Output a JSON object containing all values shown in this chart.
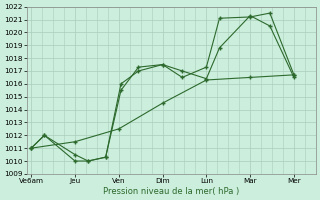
{
  "title": "Pression niveau de la mer( hPa )",
  "bg_color": "#cceedd",
  "grid_color": "#aaccbb",
  "line_color": "#2d6a2d",
  "ylim": [
    1009,
    1022
  ],
  "yticks": [
    1009,
    1010,
    1011,
    1012,
    1013,
    1014,
    1015,
    1016,
    1017,
    1018,
    1019,
    1020,
    1021,
    1022
  ],
  "x_labels": [
    "Ve6am",
    "Jeu",
    "Ven",
    "Dim",
    "Lun",
    "Mar",
    "Mer"
  ],
  "x_positions": [
    0,
    1,
    2,
    3,
    4,
    5,
    6
  ],
  "xlim": [
    -0.1,
    6.5
  ],
  "series1_x": [
    0.0,
    0.3,
    1.0,
    1.3,
    1.7,
    2.05,
    2.45,
    3.0,
    3.45,
    4.0,
    4.3,
    5.0,
    5.45,
    6.0
  ],
  "series1_y": [
    1011,
    1012,
    1010.5,
    1010,
    1010.3,
    1016,
    1017,
    1017.5,
    1016.5,
    1017.3,
    1021.1,
    1021.2,
    1021.5,
    1016.7
  ],
  "series2_x": [
    0.0,
    0.3,
    1.0,
    1.3,
    1.7,
    2.05,
    2.45,
    3.0,
    3.45,
    4.0,
    4.3,
    5.0,
    5.45,
    6.0
  ],
  "series2_y": [
    1011,
    1012,
    1010,
    1010,
    1010.3,
    1015.5,
    1017.3,
    1017.5,
    1017,
    1016.4,
    1018.8,
    1021.3,
    1020.5,
    1016.5
  ],
  "series3_x": [
    0.0,
    1.0,
    2.0,
    3.0,
    4.0,
    5.0,
    6.0
  ],
  "series3_y": [
    1011,
    1011.5,
    1012.5,
    1014.5,
    1016.3,
    1016.5,
    1016.7
  ]
}
